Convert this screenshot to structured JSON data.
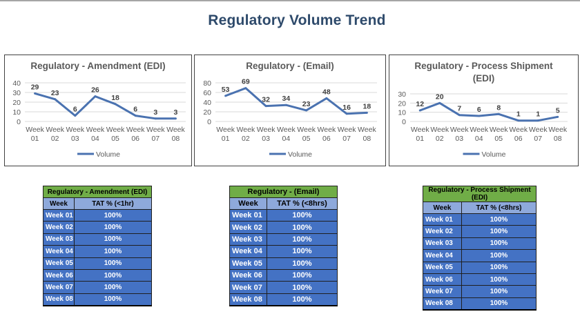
{
  "page_title": "Regulatory Volume Trend",
  "chart_data": [
    {
      "type": "line",
      "title": "Regulatory - Amendment (EDI)",
      "categories": [
        "Week 01",
        "Week 02",
        "Week 03",
        "Week 04",
        "Week 05",
        "Week 06",
        "Week 07",
        "Week 08"
      ],
      "series": [
        {
          "name": "Volume",
          "values": [
            29,
            23,
            6,
            26,
            18,
            6,
            3,
            3
          ],
          "color": "#4a72b0"
        }
      ],
      "yticks": [
        0,
        10,
        20,
        30,
        40
      ],
      "ylim": [
        0,
        40
      ]
    },
    {
      "type": "line",
      "title": "Regulatory - (Email)",
      "categories": [
        "Week 01",
        "Week 02",
        "Week 03",
        "Week 04",
        "Week 05",
        "Week 06",
        "Week 07",
        "Week 08"
      ],
      "series": [
        {
          "name": "Volume",
          "values": [
            53,
            69,
            32,
            34,
            23,
            48,
            16,
            18
          ],
          "color": "#4a72b0"
        }
      ],
      "yticks": [
        0,
        20,
        40,
        60,
        80
      ],
      "ylim": [
        0,
        80
      ]
    },
    {
      "type": "line",
      "title": "Regulatory - Process Shipment (EDI)",
      "categories": [
        "Week 01",
        "Week 02",
        "Week 03",
        "Week 04",
        "Week 05",
        "Week 06",
        "Week 07",
        "Week 08"
      ],
      "series": [
        {
          "name": "Volume",
          "values": [
            12,
            20,
            7,
            6,
            8,
            1,
            1,
            5
          ],
          "color": "#4a72b0"
        }
      ],
      "yticks": [
        0,
        10,
        20,
        30
      ],
      "ylim": [
        0,
        30
      ]
    }
  ],
  "tables": [
    {
      "title": "Regulatory - Amendment (EDI)",
      "col_week": "Week",
      "col_tat": "TAT % (<1hr)",
      "rows": [
        {
          "week": "Week 01",
          "tat": "100%"
        },
        {
          "week": "Week 02",
          "tat": "100%"
        },
        {
          "week": "Week 03",
          "tat": "100%"
        },
        {
          "week": "Week 04",
          "tat": "100%"
        },
        {
          "week": "Week 05",
          "tat": "100%"
        },
        {
          "week": "Week 06",
          "tat": "100%"
        },
        {
          "week": "Week 07",
          "tat": "100%"
        },
        {
          "week": "Week 08",
          "tat": "100%"
        }
      ]
    },
    {
      "title": "Regulatory - (Email)",
      "col_week": "Week",
      "col_tat": "TAT % (<8hrs)",
      "rows": [
        {
          "week": "Week 01",
          "tat": "100%"
        },
        {
          "week": "Week 02",
          "tat": "100%"
        },
        {
          "week": "Week 03",
          "tat": "100%"
        },
        {
          "week": "Week 04",
          "tat": "100%"
        },
        {
          "week": "Week 05",
          "tat": "100%"
        },
        {
          "week": "Week 06",
          "tat": "100%"
        },
        {
          "week": "Week 07",
          "tat": "100%"
        },
        {
          "week": "Week 08",
          "tat": "100%"
        }
      ]
    },
    {
      "title": "Regulatory - Process Shipment (EDI)",
      "col_week": "Week",
      "col_tat": "TAT % (<8hrs)",
      "rows": [
        {
          "week": "Week 01",
          "tat": "100%"
        },
        {
          "week": "Week 02",
          "tat": "100%"
        },
        {
          "week": "Week 03",
          "tat": "100%"
        },
        {
          "week": "Week 04",
          "tat": "100%"
        },
        {
          "week": "Week 05",
          "tat": "100%"
        },
        {
          "week": "Week 06",
          "tat": "100%"
        },
        {
          "week": "Week 07",
          "tat": "100%"
        },
        {
          "week": "Week 08",
          "tat": "100%"
        }
      ]
    }
  ]
}
